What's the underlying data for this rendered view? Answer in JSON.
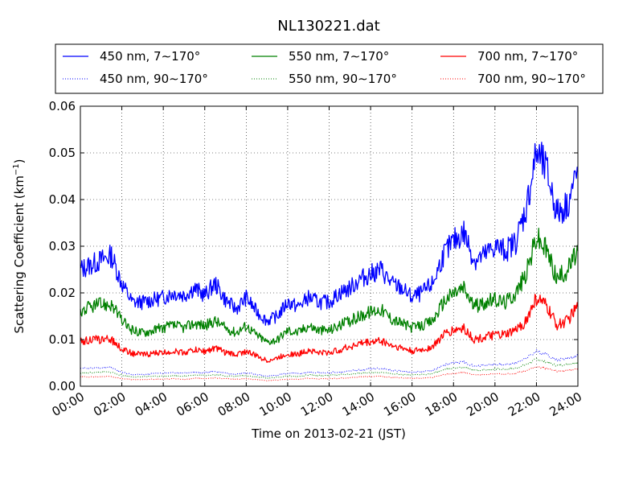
{
  "chart_data": {
    "type": "line",
    "title": "NL130221.dat",
    "xlabel": "Time on 2013-02-21 (JST)",
    "ylabel": "Scattering Coefficient (km",
    "ylabel_sup": "−1",
    "ylabel_close": ")",
    "xlim": [
      "00:00",
      "24:00"
    ],
    "ylim": [
      0.0,
      0.06
    ],
    "grid": true,
    "legend_position": "top",
    "x_ticks": [
      "00:00",
      "02:00",
      "04:00",
      "06:00",
      "08:00",
      "10:00",
      "12:00",
      "14:00",
      "16:00",
      "18:00",
      "20:00",
      "22:00",
      "24:00"
    ],
    "y_ticks": [
      "0.00",
      "0.01",
      "0.02",
      "0.03",
      "0.04",
      "0.05",
      "0.06"
    ],
    "x": [
      "00:00",
      "00:30",
      "01:00",
      "01:30",
      "02:00",
      "02:30",
      "03:00",
      "03:30",
      "04:00",
      "04:30",
      "05:00",
      "05:30",
      "06:00",
      "06:30",
      "07:00",
      "07:30",
      "08:00",
      "08:30",
      "09:00",
      "09:30",
      "10:00",
      "10:30",
      "11:00",
      "11:30",
      "12:00",
      "12:30",
      "13:00",
      "13:30",
      "14:00",
      "14:30",
      "15:00",
      "15:30",
      "16:00",
      "16:30",
      "17:00",
      "17:30",
      "18:00",
      "18:30",
      "19:00",
      "19:30",
      "20:00",
      "20:30",
      "21:00",
      "21:30",
      "22:00",
      "22:30",
      "23:00",
      "23:30",
      "24:00"
    ],
    "series": [
      {
        "name": "450 nm, 7∼170°",
        "color": "#0000ff",
        "dash": "solid",
        "values": [
          0.025,
          0.026,
          0.027,
          0.028,
          0.022,
          0.018,
          0.018,
          0.0185,
          0.019,
          0.02,
          0.0195,
          0.021,
          0.0195,
          0.022,
          0.0185,
          0.0165,
          0.019,
          0.016,
          0.014,
          0.015,
          0.018,
          0.017,
          0.019,
          0.018,
          0.018,
          0.02,
          0.021,
          0.023,
          0.024,
          0.025,
          0.022,
          0.021,
          0.019,
          0.02,
          0.022,
          0.028,
          0.031,
          0.033,
          0.027,
          0.028,
          0.03,
          0.029,
          0.031,
          0.038,
          0.05,
          0.046,
          0.037,
          0.039,
          0.046
        ]
      },
      {
        "name": "550 nm, 7∼170°",
        "color": "#008000",
        "dash": "solid",
        "values": [
          0.016,
          0.017,
          0.0175,
          0.0175,
          0.014,
          0.012,
          0.0115,
          0.012,
          0.0125,
          0.013,
          0.0125,
          0.0135,
          0.013,
          0.014,
          0.0125,
          0.0115,
          0.013,
          0.011,
          0.0095,
          0.01,
          0.012,
          0.0115,
          0.013,
          0.012,
          0.012,
          0.013,
          0.014,
          0.015,
          0.016,
          0.0165,
          0.0145,
          0.0135,
          0.0125,
          0.013,
          0.014,
          0.018,
          0.02,
          0.021,
          0.017,
          0.018,
          0.0185,
          0.018,
          0.02,
          0.024,
          0.032,
          0.029,
          0.023,
          0.025,
          0.029
        ]
      },
      {
        "name": "700 nm, 7∼170°",
        "color": "#ff0000",
        "dash": "solid",
        "values": [
          0.0095,
          0.01,
          0.01,
          0.01,
          0.008,
          0.007,
          0.0068,
          0.007,
          0.0072,
          0.0075,
          0.0072,
          0.0078,
          0.0075,
          0.0082,
          0.0072,
          0.0068,
          0.0075,
          0.0065,
          0.0055,
          0.006,
          0.007,
          0.0068,
          0.0078,
          0.0072,
          0.0072,
          0.0078,
          0.0085,
          0.0092,
          0.0095,
          0.0098,
          0.0088,
          0.0082,
          0.0075,
          0.0078,
          0.0085,
          0.011,
          0.012,
          0.0125,
          0.01,
          0.0105,
          0.011,
          0.011,
          0.012,
          0.014,
          0.019,
          0.017,
          0.013,
          0.014,
          0.017
        ]
      },
      {
        "name": "450 nm, 90∼170°",
        "color": "#0000ff",
        "dash": "dotted",
        "values": [
          0.0038,
          0.0038,
          0.004,
          0.004,
          0.003,
          0.0025,
          0.0025,
          0.0027,
          0.0028,
          0.0029,
          0.0028,
          0.003,
          0.0029,
          0.0032,
          0.0028,
          0.0026,
          0.0029,
          0.0025,
          0.0022,
          0.0024,
          0.0028,
          0.0027,
          0.003,
          0.0029,
          0.0029,
          0.0031,
          0.0033,
          0.0035,
          0.0037,
          0.0038,
          0.0034,
          0.0032,
          0.003,
          0.0031,
          0.0034,
          0.0045,
          0.005,
          0.0052,
          0.0043,
          0.0045,
          0.0047,
          0.0046,
          0.005,
          0.006,
          0.0075,
          0.0068,
          0.0056,
          0.006,
          0.0065
        ]
      },
      {
        "name": "550 nm, 90∼170°",
        "color": "#008000",
        "dash": "dotted",
        "values": [
          0.0028,
          0.0029,
          0.003,
          0.003,
          0.0023,
          0.002,
          0.002,
          0.0021,
          0.0022,
          0.0023,
          0.0022,
          0.0024,
          0.0023,
          0.0025,
          0.0022,
          0.0021,
          0.0023,
          0.002,
          0.0018,
          0.0019,
          0.0022,
          0.0021,
          0.0024,
          0.0023,
          0.0023,
          0.0025,
          0.0026,
          0.0028,
          0.0029,
          0.003,
          0.0027,
          0.0025,
          0.0024,
          0.0025,
          0.0027,
          0.0035,
          0.0039,
          0.004,
          0.0034,
          0.0035,
          0.0037,
          0.0036,
          0.0039,
          0.0046,
          0.0058,
          0.0052,
          0.0044,
          0.0047,
          0.0052
        ]
      },
      {
        "name": "700 nm, 90∼170°",
        "color": "#ff0000",
        "dash": "dotted",
        "values": [
          0.002,
          0.002,
          0.0021,
          0.0021,
          0.0016,
          0.0014,
          0.0014,
          0.0015,
          0.0015,
          0.0016,
          0.0015,
          0.0017,
          0.0016,
          0.0018,
          0.0016,
          0.0015,
          0.0016,
          0.0014,
          0.0012,
          0.0013,
          0.0015,
          0.0015,
          0.0017,
          0.0016,
          0.0016,
          0.0017,
          0.0018,
          0.002,
          0.0021,
          0.0021,
          0.0019,
          0.0018,
          0.0017,
          0.0017,
          0.0019,
          0.0025,
          0.0028,
          0.0029,
          0.0024,
          0.0025,
          0.0026,
          0.0026,
          0.0028,
          0.0033,
          0.0042,
          0.0038,
          0.0032,
          0.0034,
          0.0038
        ]
      }
    ]
  }
}
